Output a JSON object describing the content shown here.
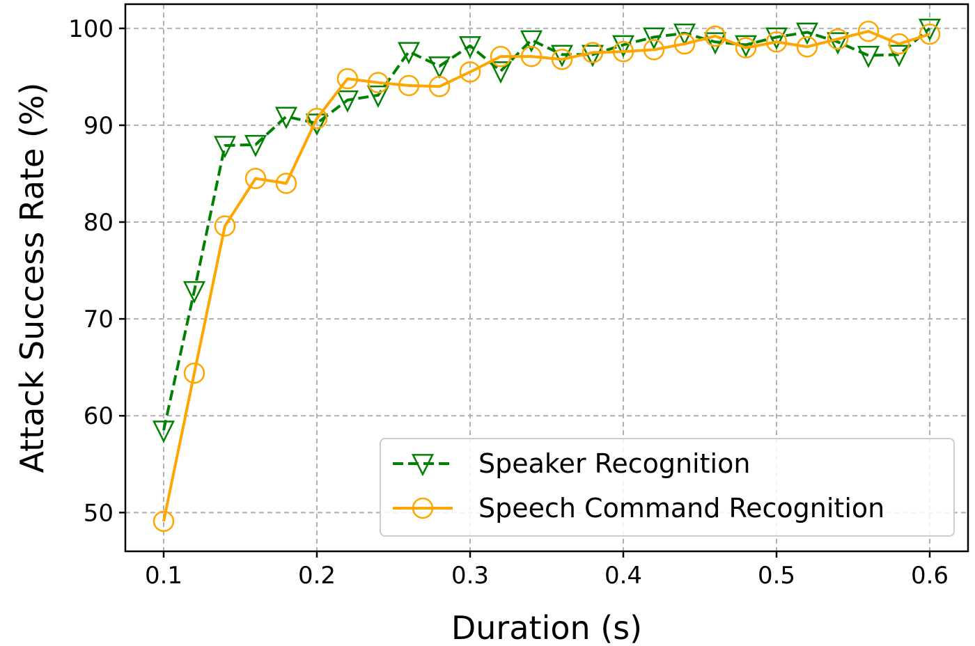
{
  "chart_data": {
    "type": "line",
    "title": "",
    "xlabel": "Duration (s)",
    "ylabel": "Attack Success Rate (%)",
    "xlim": [
      0.075,
      0.625
    ],
    "ylim": [
      46,
      102.5
    ],
    "xticks": [
      0.1,
      0.2,
      0.3,
      0.4,
      0.5,
      0.6
    ],
    "xtick_labels": [
      "0.1",
      "0.2",
      "0.3",
      "0.4",
      "0.5",
      "0.6"
    ],
    "yticks": [
      50,
      60,
      70,
      80,
      90,
      100
    ],
    "ytick_labels": [
      "50",
      "60",
      "70",
      "80",
      "90",
      "100"
    ],
    "grid": true,
    "legend_position": "lower-right",
    "x": [
      0.1,
      0.12,
      0.14,
      0.16,
      0.18,
      0.2,
      0.22,
      0.24,
      0.26,
      0.28,
      0.3,
      0.32,
      0.34,
      0.36,
      0.38,
      0.4,
      0.42,
      0.44,
      0.46,
      0.48,
      0.5,
      0.52,
      0.54,
      0.56,
      0.58,
      0.6
    ],
    "series": [
      {
        "name": "Speaker Recognition",
        "color": "#008000",
        "linestyle": "dashed",
        "marker": "triangle-down",
        "values": [
          58.5,
          72.9,
          87.9,
          88.0,
          90.9,
          90.2,
          92.6,
          93.1,
          97.6,
          96.1,
          98.2,
          95.6,
          98.8,
          97.3,
          97.3,
          98.3,
          99.1,
          99.5,
          98.6,
          98.3,
          99.1,
          99.6,
          98.6,
          97.2,
          97.3,
          100.0
        ]
      },
      {
        "name": "Speech Command Recognition",
        "color": "#FFA500",
        "linestyle": "solid",
        "marker": "circle",
        "values": [
          49.1,
          64.4,
          79.6,
          84.5,
          84.0,
          90.7,
          94.8,
          94.4,
          94.1,
          94.0,
          95.5,
          97.1,
          97.1,
          96.8,
          97.5,
          97.6,
          97.8,
          98.4,
          99.2,
          98.0,
          98.6,
          98.1,
          98.9,
          99.7,
          98.4,
          99.4
        ]
      }
    ]
  }
}
